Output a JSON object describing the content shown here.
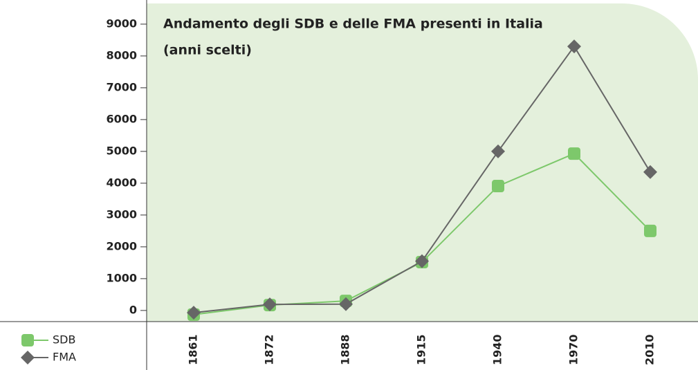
{
  "chart_data": {
    "type": "line",
    "title": [
      "Andamento degli SDB e delle FMA presenti in Italia",
      "(anni scelti)"
    ],
    "categories": [
      "1861",
      "1872",
      "1888",
      "1915",
      "1940",
      "1970",
      "2010"
    ],
    "series": [
      {
        "name": "SDB",
        "color": "#7dc86b",
        "marker": "square",
        "values": [
          -130,
          170,
          300,
          1520,
          3910,
          4930,
          2500
        ]
      },
      {
        "name": "FMA",
        "color": "#666666",
        "marker": "diamond",
        "values": [
          -70,
          190,
          200,
          1550,
          5000,
          8300,
          4350
        ]
      }
    ],
    "ylim": [
      -350,
      9650
    ],
    "yticks": [
      0,
      1000,
      2000,
      3000,
      4000,
      5000,
      6000,
      7000,
      8000,
      9000
    ],
    "legend": "bottom-left",
    "background": "#e4f0dc"
  }
}
